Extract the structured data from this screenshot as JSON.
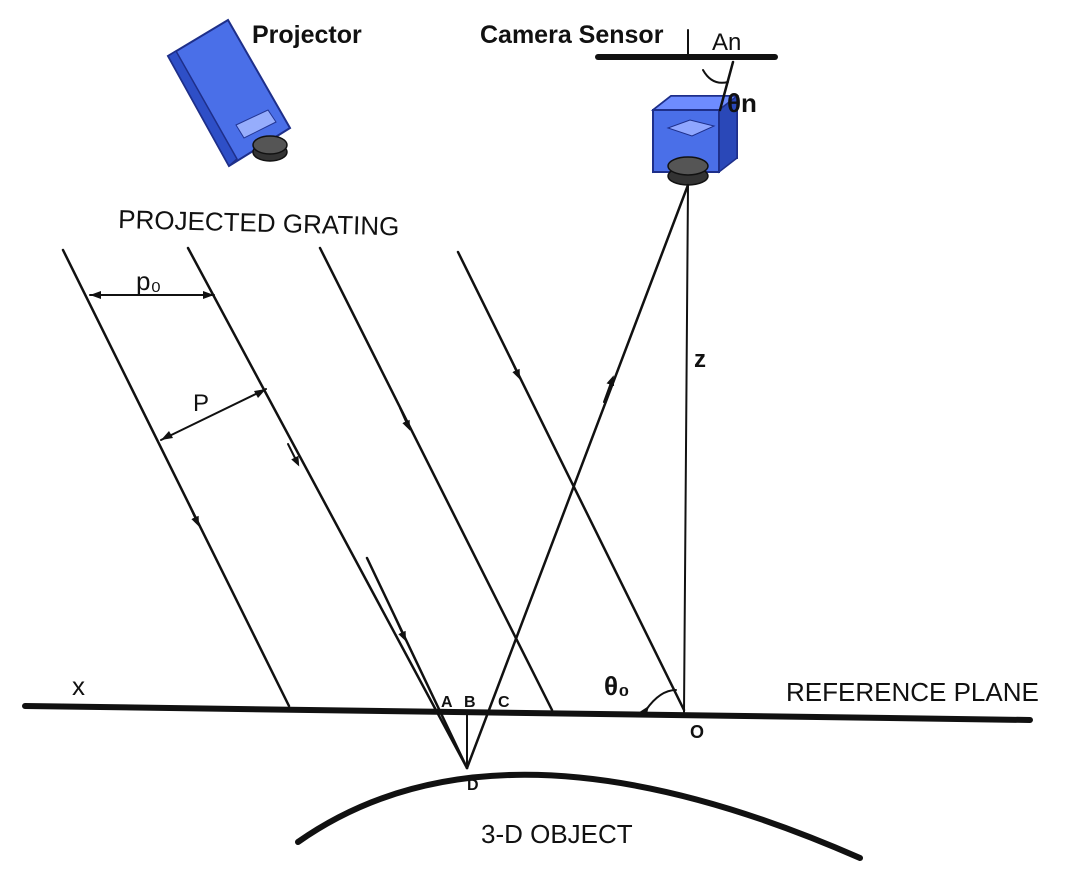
{
  "labels": {
    "projector": "Projector",
    "camera_sensor": "Camera Sensor",
    "an": "An",
    "theta_n": "θn",
    "projected_grating": "PROJECTED GRATING",
    "p0": "p₀",
    "p": "P",
    "z": "z",
    "x": "x",
    "a": "A",
    "b": "B",
    "c": "C",
    "d": "D",
    "o": "O",
    "theta_0": "θ₀",
    "reference_plane": "REFERENCE PLANE",
    "object": "3-D OBJECT"
  },
  "colors": {
    "device_body": "#4a6fe8",
    "device_edge": "#1e2f8a",
    "lens": "#333333",
    "ink": "#111111"
  }
}
